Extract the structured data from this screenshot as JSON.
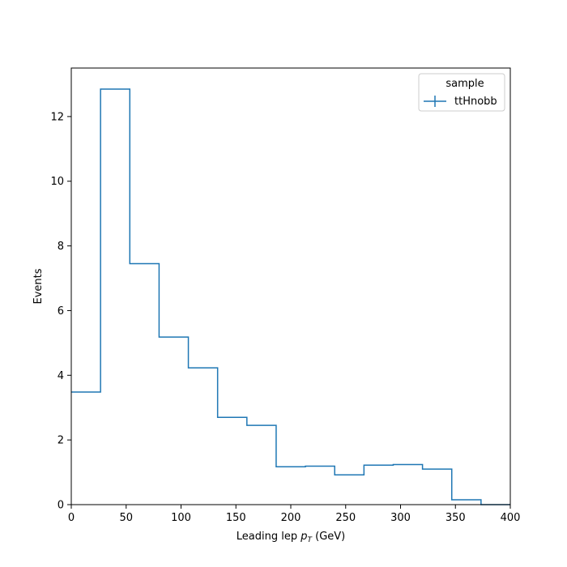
{
  "chart_data": {
    "type": "histogram",
    "xlabel_main": "Leading lep ",
    "xlabel_math": "p",
    "xlabel_sub": "T",
    "xlabel_unit": " (GeV)",
    "ylabel": "Events",
    "xlim": [
      0,
      400
    ],
    "ylim": [
      0,
      13.5
    ],
    "xticks": [
      0,
      50,
      100,
      150,
      200,
      250,
      300,
      350,
      400
    ],
    "yticks": [
      0,
      2,
      4,
      6,
      8,
      10,
      12
    ],
    "bin_edges": [
      0,
      26.67,
      53.33,
      80,
      106.67,
      133.33,
      160,
      186.67,
      213.33,
      240,
      266.67,
      293.33,
      320,
      346.67,
      373.33,
      400
    ],
    "series": [
      {
        "name": "ttHnobb",
        "color": "#1f77b4",
        "values": [
          3.48,
          12.85,
          7.45,
          5.18,
          4.23,
          2.7,
          2.45,
          1.17,
          1.19,
          0.92,
          1.22,
          1.24,
          1.1,
          0.15,
          0.0
        ]
      }
    ],
    "legend_title": "sample",
    "legend_position": "top-right",
    "grid": false
  }
}
